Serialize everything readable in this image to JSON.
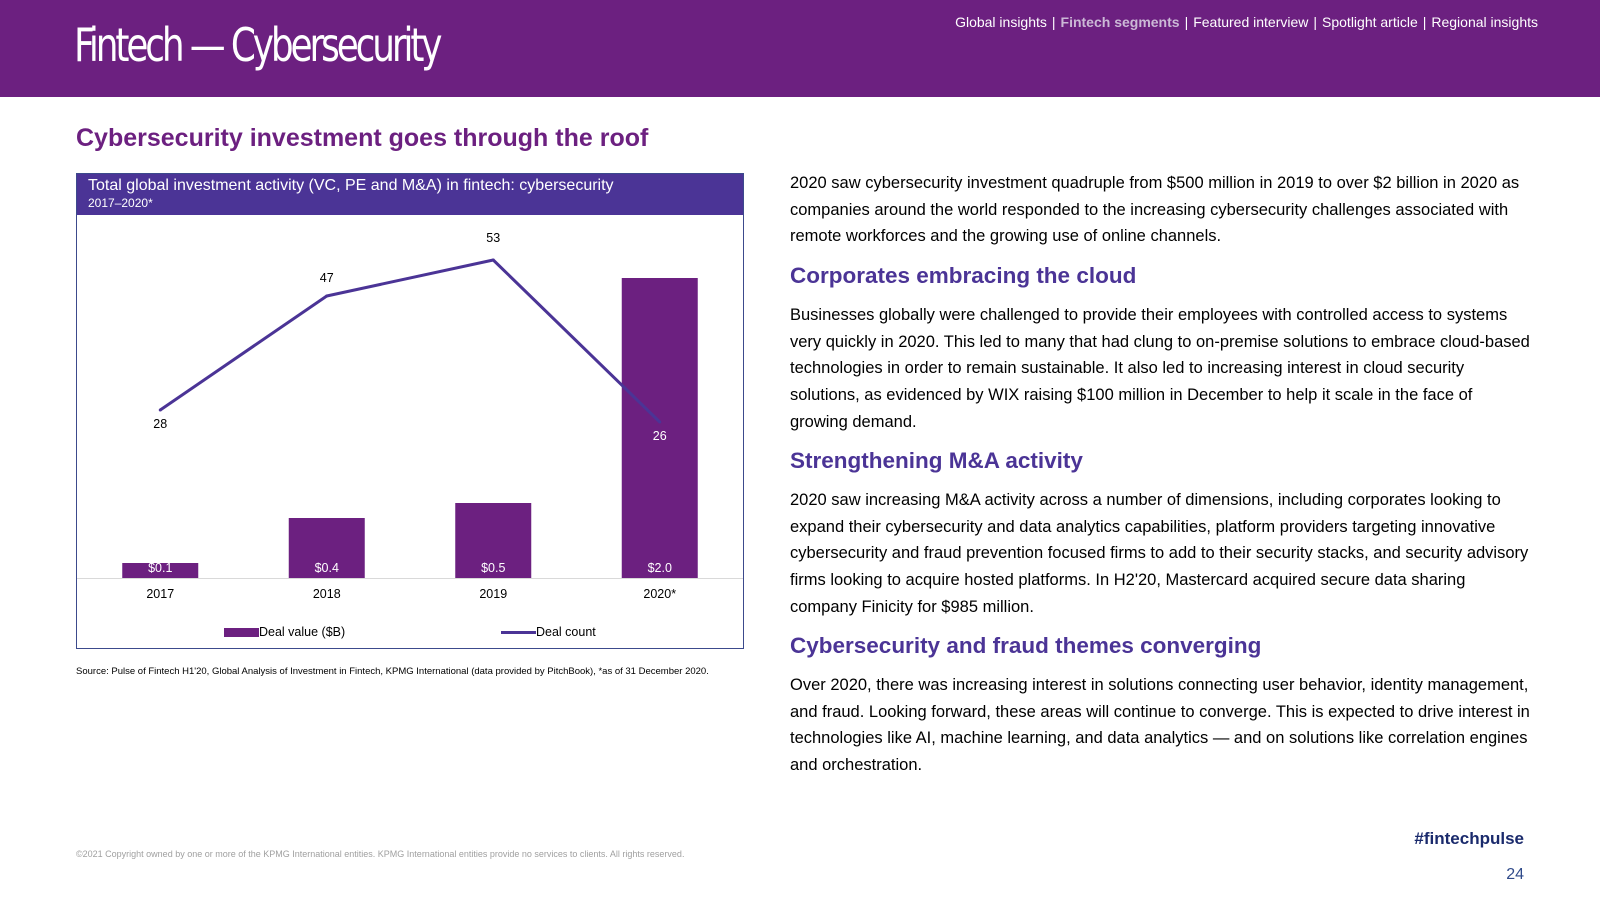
{
  "header": {
    "title": "Fintech — Cybersecurity",
    "nav": [
      {
        "label": "Global insights",
        "active": false
      },
      {
        "label": "Fintech segments",
        "active": true
      },
      {
        "label": "Featured interview",
        "active": false
      },
      {
        "label": "Spotlight article",
        "active": false
      },
      {
        "label": "Regional insights",
        "active": false
      }
    ],
    "nav_separator": "|"
  },
  "section_heading": "Cybersecurity investment goes through the roof",
  "chart_data": {
    "type": "bar",
    "title": "Total global investment activity (VC, PE and M&A) in fintech: cybersecurity",
    "subtitle": "2017–2020*",
    "categories": [
      "2017",
      "2018",
      "2019",
      "2020*"
    ],
    "series": [
      {
        "name": "Deal value ($B)",
        "type": "bar",
        "values": [
          0.1,
          0.4,
          0.5,
          2.0
        ],
        "labels": [
          "$0.1",
          "$0.4",
          "$0.5",
          "$2.0"
        ],
        "color": "#6c2080"
      },
      {
        "name": "Deal count",
        "type": "line",
        "values": [
          28,
          47,
          53,
          26
        ],
        "labels": [
          "28",
          "47",
          "53",
          "26"
        ],
        "color": "#4b3496"
      }
    ],
    "bar_ylim": [
      0,
      2.4
    ],
    "line_ylim": [
      0,
      60
    ],
    "legend": "bottom",
    "grid": false
  },
  "source_note": "Source: Pulse of Fintech H1'20, Global Analysis of Investment in Fintech, KPMG International (data provided by PitchBook), *as of 31 December 2020.",
  "content": {
    "intro": "2020 saw cybersecurity investment quadruple from $500 million in 2019 to over $2 billion in 2020 as companies around the world responded to the increasing cybersecurity challenges associated with remote workforces and the growing use of online channels.",
    "sections": [
      {
        "heading": "Corporates embracing the cloud",
        "text": "Businesses globally were challenged to provide their employees with controlled access to systems very quickly in 2020. This led to many that had clung to on-premise solutions to embrace cloud-based technologies in order to remain sustainable. It also led to increasing interest in cloud security solutions, as evidenced by WIX raising $100 million in December to help it scale in the face of growing demand."
      },
      {
        "heading": "Strengthening M&A activity",
        "text": "2020 saw increasing M&A activity across a number of dimensions, including corporates looking to expand their cybersecurity and data analytics capabilities, platform providers targeting innovative cybersecurity and fraud prevention focused firms to add to their security stacks, and security advisory firms looking to acquire hosted platforms. In H2'20, Mastercard acquired secure data sharing company Finicity for $985 million."
      },
      {
        "heading": "Cybersecurity and fraud themes converging",
        "text": "Over 2020, there was increasing interest in solutions connecting user behavior, identity management, and fraud. Looking forward, these areas will continue to converge. This is expected to drive interest in technologies like AI, machine learning, and data analytics — and on solutions like correlation engines and orchestration."
      }
    ]
  },
  "footer": {
    "copyright": "©2021 Copyright owned by one or more of the KPMG International entities. KPMG International entities provide no services to clients. All rights reserved.",
    "hashtag": "#fintechpulse",
    "page_number": "24"
  }
}
